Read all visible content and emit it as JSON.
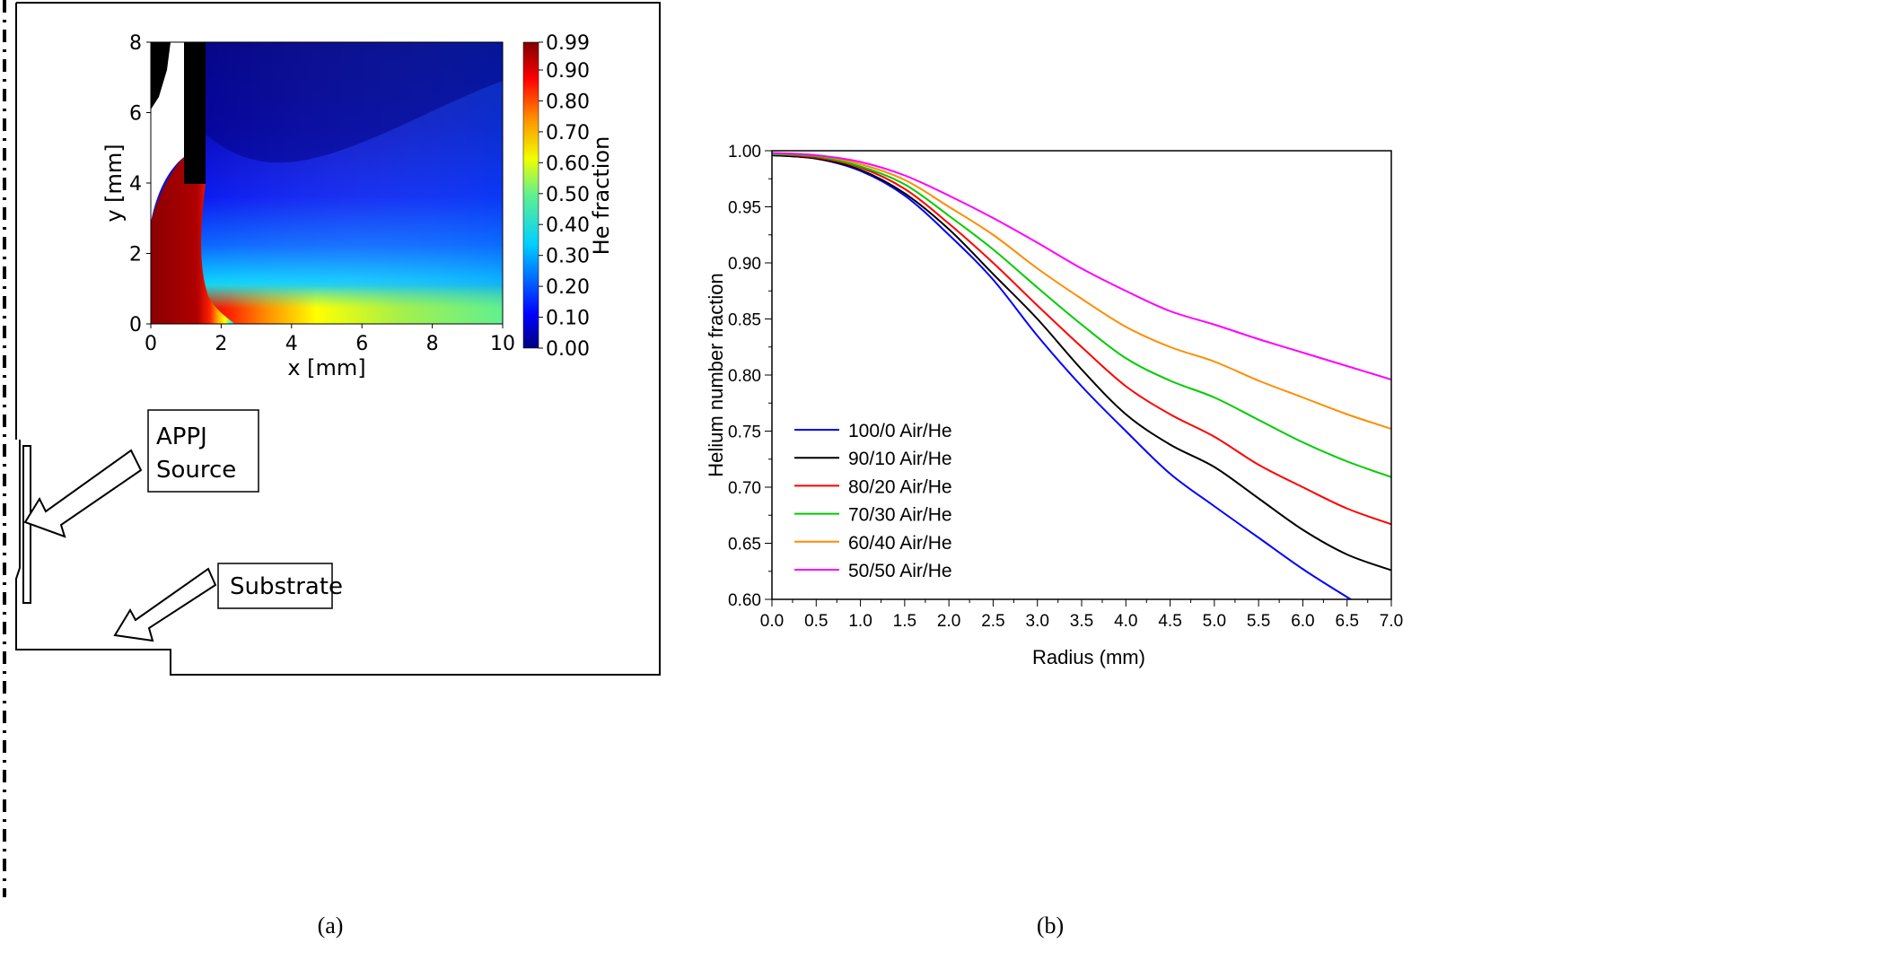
{
  "panel_labels": {
    "a": "(a)",
    "b": "(b)"
  },
  "annotations": {
    "appj_line1": "APPJ",
    "appj_line2": "Source",
    "substrate": "Substrate"
  },
  "chart_data": [
    {
      "type": "heatmap",
      "panel": "a",
      "xlabel": "x [mm]",
      "ylabel": "y [mm]",
      "xlim": [
        0,
        10
      ],
      "ylim": [
        0,
        8
      ],
      "xticks": [
        "0",
        "2",
        "4",
        "6",
        "8",
        "10"
      ],
      "yticks": [
        "0",
        "2",
        "4",
        "6",
        "8"
      ],
      "colorbar": {
        "label": "He fraction",
        "range": [
          0,
          0.99
        ],
        "colormap": "jet",
        "ticks": [
          "0.00",
          "0.10",
          "0.20",
          "0.30",
          "0.40",
          "0.50",
          "0.60",
          "0.70",
          "0.80",
          "0.90",
          "0.99"
        ]
      }
    },
    {
      "type": "line",
      "panel": "b",
      "xlabel": "Radius (mm)",
      "ylabel": "Helium number fraction",
      "xlim": [
        0,
        7
      ],
      "ylim": [
        0.6,
        1.0
      ],
      "xticks": [
        "0.0",
        "0.5",
        "1.0",
        "1.5",
        "2.0",
        "2.5",
        "3.0",
        "3.5",
        "4.0",
        "4.5",
        "5.0",
        "5.5",
        "6.0",
        "6.5",
        "7.0"
      ],
      "yticks": [
        "0.60",
        "0.65",
        "0.70",
        "0.75",
        "0.80",
        "0.85",
        "0.90",
        "0.95",
        "1.00"
      ],
      "legend_position": "bottom-left",
      "x": [
        0,
        0.5,
        1.0,
        1.5,
        2.0,
        2.5,
        3.0,
        3.5,
        4.0,
        4.5,
        5.0,
        5.5,
        6.0,
        6.5,
        7.0
      ],
      "series": [
        {
          "name": "100/0 Air/He",
          "color": "#0000ff",
          "values": [
            0.996,
            0.993,
            0.982,
            0.96,
            0.925,
            0.885,
            0.835,
            0.79,
            0.75,
            0.712,
            0.683,
            0.655,
            0.627,
            0.602,
            0.578
          ]
        },
        {
          "name": "90/10 Air/He",
          "color": "#000000",
          "values": [
            0.996,
            0.993,
            0.983,
            0.962,
            0.93,
            0.89,
            0.85,
            0.805,
            0.765,
            0.738,
            0.718,
            0.69,
            0.662,
            0.64,
            0.626
          ]
        },
        {
          "name": "80/20 Air/He",
          "color": "#ff0000",
          "values": [
            0.997,
            0.994,
            0.985,
            0.966,
            0.935,
            0.9,
            0.862,
            0.825,
            0.79,
            0.765,
            0.745,
            0.72,
            0.7,
            0.681,
            0.667
          ]
        },
        {
          "name": "70/30 Air/He",
          "color": "#00cc00",
          "values": [
            0.997,
            0.995,
            0.986,
            0.97,
            0.942,
            0.912,
            0.878,
            0.845,
            0.815,
            0.795,
            0.78,
            0.76,
            0.74,
            0.723,
            0.709
          ]
        },
        {
          "name": "60/40 Air/He",
          "color": "#ff8c00",
          "values": [
            0.998,
            0.996,
            0.988,
            0.974,
            0.95,
            0.925,
            0.895,
            0.868,
            0.843,
            0.825,
            0.812,
            0.795,
            0.78,
            0.765,
            0.752
          ]
        },
        {
          "name": "50/50 Air/He",
          "color": "#ff00ff",
          "values": [
            0.998,
            0.996,
            0.99,
            0.978,
            0.96,
            0.94,
            0.918,
            0.895,
            0.875,
            0.857,
            0.845,
            0.832,
            0.82,
            0.808,
            0.796
          ]
        }
      ]
    }
  ]
}
